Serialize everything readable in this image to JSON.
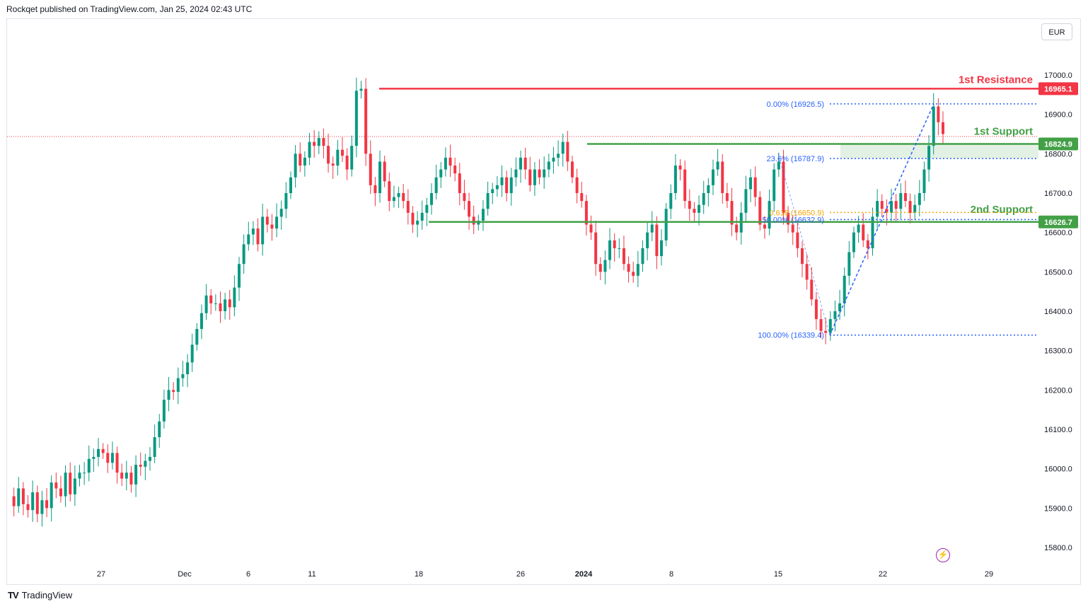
{
  "header": {
    "publisher_line": "Rockqet published on TradingView.com, Jan 25, 2024 02:43 UTC"
  },
  "currency": "EUR",
  "brand": {
    "name": "TradingView",
    "logo": "TV"
  },
  "icons": {
    "bolt": "lightning-icon"
  },
  "colors": {
    "up": "#089981",
    "down": "#f23645",
    "resistance": "#f23645",
    "support": "#43a047",
    "fib": "#2962ff",
    "fib_mid": "#f2a600"
  },
  "chart_data": {
    "type": "candlestick",
    "title": "",
    "y_axis": {
      "ticks": [
        17000,
        16900,
        16800,
        16700,
        16600,
        16500,
        16400,
        16300,
        16200,
        16100,
        16000,
        15900,
        15800
      ]
    },
    "x_axis": {
      "ticks": [
        "27",
        "Dec",
        "6",
        "11",
        "18",
        "26",
        "2024",
        "8",
        "15",
        "22",
        "29"
      ]
    },
    "series_ohlc_points": [
      15930,
      15905,
      15950,
      15910,
      15895,
      15940,
      15885,
      15920,
      15900,
      15965,
      15950,
      15930,
      15990,
      15935,
      15975,
      15990,
      15990,
      16025,
      16030,
      16050,
      16040,
      16015,
      16040,
      15990,
      15975,
      15990,
      15960,
      16010,
      16005,
      16020,
      16030,
      16080,
      16120,
      16175,
      16200,
      16195,
      16230,
      16240,
      16270,
      16315,
      16355,
      16395,
      16440,
      16420,
      16420,
      16400,
      16430,
      16410,
      16460,
      16520,
      16570,
      16595,
      16610,
      16570,
      16640,
      16620,
      16610,
      16640,
      16660,
      16700,
      16740,
      16800,
      16770,
      16790,
      16830,
      16820,
      16840,
      16820,
      16775,
      16770,
      16810,
      16795,
      16760,
      16820,
      16960,
      16965,
      16800,
      16720,
      16700,
      16780,
      16730,
      16680,
      16690,
      16700,
      16680,
      16650,
      16620,
      16630,
      16650,
      16670,
      16700,
      16740,
      16760,
      16790,
      16770,
      16750,
      16700,
      16680,
      16640,
      16620,
      16630,
      16660,
      16700,
      16710,
      16720,
      16740,
      16700,
      16740,
      16760,
      16790,
      16760,
      16720,
      16760,
      16740,
      16760,
      16780,
      16790,
      16800,
      16830,
      16780,
      16740,
      16700,
      16680,
      16620,
      16600,
      16520,
      16500,
      16530,
      16580,
      16560,
      16560,
      16520,
      16500,
      16490,
      16520,
      16560,
      16600,
      16620,
      16540,
      16580,
      16660,
      16700,
      16770,
      16760,
      16680,
      16660,
      16650,
      16670,
      16700,
      16720,
      16760,
      16780,
      16700,
      16680,
      16620,
      16600,
      16650,
      16710,
      16740,
      16690,
      16620,
      16610,
      16680,
      16760,
      16780,
      16650,
      16620,
      16600,
      16560,
      16520,
      16480,
      16430,
      16380,
      16350,
      16345,
      16380,
      16400,
      16420,
      16490,
      16550,
      16600,
      16620,
      16580,
      16560,
      16640,
      16680,
      16660,
      16650,
      16680,
      16660,
      16700,
      16680,
      16650,
      16670,
      16700,
      16760,
      16820,
      16920,
      16880,
      16850
    ],
    "levels": [
      {
        "label": "1st Resistance",
        "value": 16965.1,
        "price_label": "16965.1"
      },
      {
        "label": "1st Support",
        "value": 16824.9,
        "price_label": "16824.9"
      },
      {
        "label": "2nd Support",
        "value": 16626.7,
        "price_label": "16626.7"
      }
    ],
    "fibonacci": [
      {
        "label": "0.00% (16926.5)",
        "value": 16926.5
      },
      {
        "label": "23.6% (16787.9)",
        "value": 16787.9
      },
      {
        "label": "0.618 (16650.9)",
        "value": 16650.9
      },
      {
        "label": "50.00% (16632.9)",
        "value": 16632.9
      },
      {
        "label": "100.00% (16339.4)",
        "value": 16339.4
      }
    ],
    "grid": false
  }
}
